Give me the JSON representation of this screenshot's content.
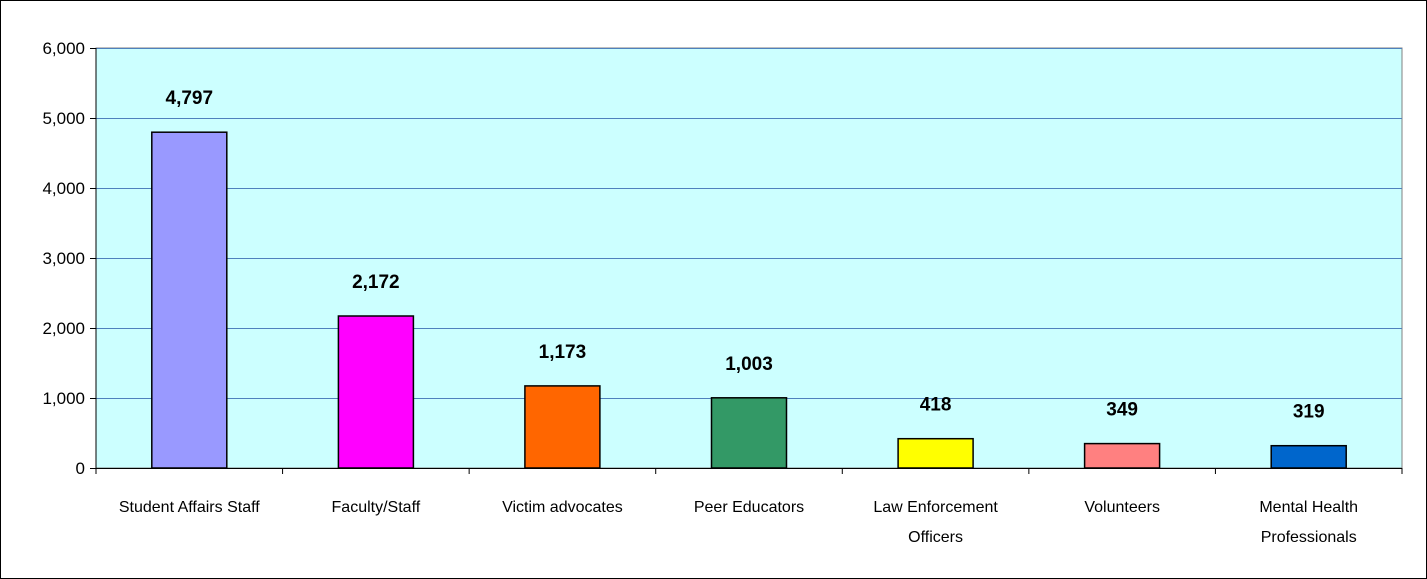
{
  "chart_data": {
    "type": "bar",
    "categories": [
      "Student Affairs Staff",
      "Faculty/Staff",
      "Victim advocates",
      "Peer Educators",
      "Law Enforcement Officers",
      "Volunteers",
      "Mental Health Professionals"
    ],
    "values": [
      4797,
      2172,
      1173,
      1003,
      418,
      349,
      319
    ],
    "data_labels": [
      "4,797",
      "2,172",
      "1,173",
      "1,003",
      "418",
      "349",
      "319"
    ],
    "bar_colors": [
      "#9999FF",
      "#FF00FF",
      "#FF6600",
      "#339966",
      "#FFFF00",
      "#FF8080",
      "#0066CC"
    ],
    "title": "",
    "xlabel": "",
    "ylabel": "",
    "ylim": [
      0,
      6000
    ],
    "yticks": [
      0,
      1000,
      2000,
      3000,
      4000,
      5000,
      6000
    ],
    "ytick_labels": [
      "0",
      "1,000",
      "2,000",
      "3,000",
      "4,000",
      "5,000",
      "6,000"
    ],
    "grid": true,
    "plot_background": "#CCFFFF",
    "gridline_color": "#4F81BD",
    "legend": "none"
  }
}
